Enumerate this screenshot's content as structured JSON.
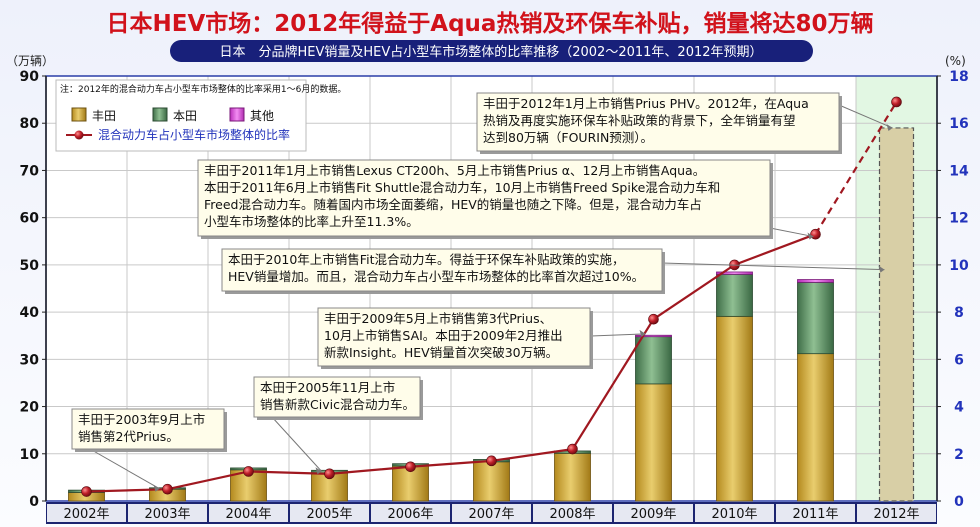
{
  "title": "日本HEV市场：2012年得益于Aqua热销及环保车补贴，销量将达80万辆",
  "subtitle": "日本　分品牌HEV销量及HEV占小型车市场整体的比率推移（2002～2011年、2012年预期）",
  "left_unit": "（万辆）",
  "right_unit": "(%)",
  "note": "注：2012年的混合动力车占小型车市场整体的比率采用1～6月的数据。",
  "colors": {
    "toyota": "#c8a43a",
    "honda": "#5f8f66",
    "other": "#d94fd9",
    "line": "#a01820",
    "title_red": "#d1121b",
    "subtitle_bg": "#18207a",
    "frame_blue": "#2b3ea8",
    "forecast_bg": "#e2f7e3"
  },
  "chart_data": {
    "type": "bar",
    "stacked": true,
    "categories": [
      "2002年",
      "2003年",
      "2004年",
      "2005年",
      "2006年",
      "2007年",
      "2008年",
      "2009年",
      "2010年",
      "2011年",
      "2012年"
    ],
    "series": [
      {
        "name": "丰田",
        "values": [
          1.8,
          2.5,
          6.6,
          5.9,
          7.4,
          8.3,
          10.1,
          24.8,
          39.1,
          31.2,
          79.0
        ]
      },
      {
        "name": "本田",
        "values": [
          0.5,
          0.3,
          0.4,
          0.6,
          0.5,
          0.5,
          0.5,
          10.0,
          8.9,
          15.1,
          0
        ]
      },
      {
        "name": "其他",
        "values": [
          0,
          0,
          0,
          0,
          0,
          0,
          0,
          0.3,
          0.5,
          0.6,
          0
        ]
      }
    ],
    "line": {
      "name": "混合动力车占小型车市场整体的比率",
      "values": [
        0.4,
        0.5,
        1.25,
        1.15,
        1.45,
        1.7,
        2.2,
        7.7,
        10.0,
        11.3,
        16.9
      ]
    },
    "y_left": {
      "min": 0,
      "max": 90,
      "step": 10,
      "ticks": [
        "0",
        "10",
        "20",
        "30",
        "40",
        "50",
        "60",
        "70",
        "80",
        "90"
      ]
    },
    "y_right": {
      "min": 0,
      "max": 18,
      "step": 2,
      "ticks": [
        "0",
        "2",
        "4",
        "6",
        "8",
        "10",
        "12",
        "14",
        "16",
        "18"
      ]
    },
    "forecast_category": "2012年",
    "grid": true,
    "legend_position": "top-left"
  },
  "annotations": [
    {
      "lines": [
        "丰田于2003年9月上市",
        "销售第2代Prius。"
      ]
    },
    {
      "lines": [
        "本田于2005年11月上市",
        "销售新款Civic混合动力车。"
      ]
    },
    {
      "lines": [
        "丰田于2009年5月上市销售第3代Prius、",
        "10月上市销售SAI。本田于2009年2月推出",
        "新款Insight。HEV销量首次突破30万辆。"
      ]
    },
    {
      "lines": [
        "本田于2010年上市销售Fit混合动力车。得益于环保车补贴政策的实施，",
        "HEV销量增加。而且，混合动力车占小型车市场整体的比率首次超过10%。"
      ]
    },
    {
      "lines": [
        "丰田于2011年1月上市销售Lexus CT200h、5月上市销售Prius α、12月上市销售Aqua。",
        "本田于2011年6月上市销售Fit Shuttle混合动力车，10月上市销售Freed Spike混合动力车和",
        "Freed混合动力车。随着国内市场全面萎缩，HEV的销量也随之下降。但是，混合动力车占",
        "小型车市场整体的比率上升至11.3%。"
      ]
    },
    {
      "lines": [
        "丰田于2012年1月上市销售Prius PHV。2012年，在Aqua",
        "热销及再度实施环保车补贴政策的背景下，全年销量有望",
        "达到80万辆（FOURIN预测）。"
      ]
    }
  ]
}
